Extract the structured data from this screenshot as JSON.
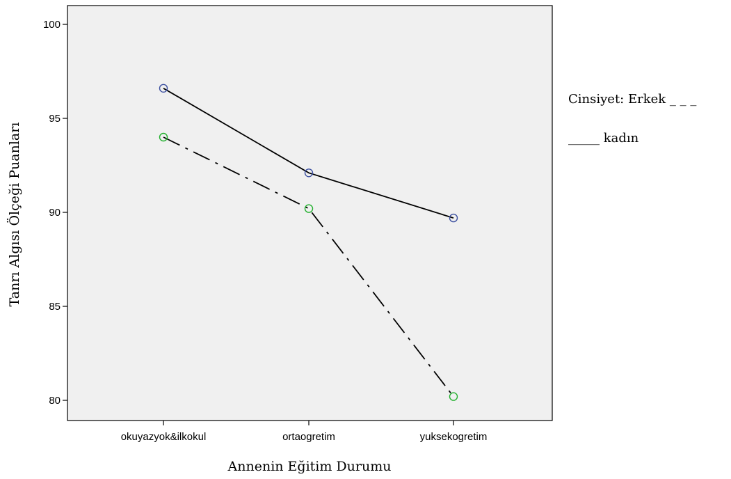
{
  "chart_data": {
    "type": "line",
    "categories": [
      "okuyazyok&ilkokul",
      "ortaogretim",
      "yuksekogretim"
    ],
    "xlabel": "Annenin Eğitim Durumu",
    "ylabel": "Tanrı Algısı Ölçeği Puanları",
    "ylim": [
      79.0,
      101.0
    ],
    "yticks": [
      80,
      85,
      90,
      95,
      100
    ],
    "grid": false,
    "plot_background": "#f0f0f0",
    "series": [
      {
        "values": [
          96.6,
          92.1,
          89.7
        ],
        "line_style": "solid",
        "marker_color": "#3b4fa0",
        "line_color": "#000000"
      },
      {
        "values": [
          94.0,
          90.2,
          80.2
        ],
        "line_style": "dash-dot",
        "marker_color": "#22b02e",
        "line_color": "#000000"
      }
    ],
    "legend": {
      "position": "right",
      "line1": "Cinsiyet: Erkek _ _ _",
      "line2": "_____ kadın"
    }
  }
}
